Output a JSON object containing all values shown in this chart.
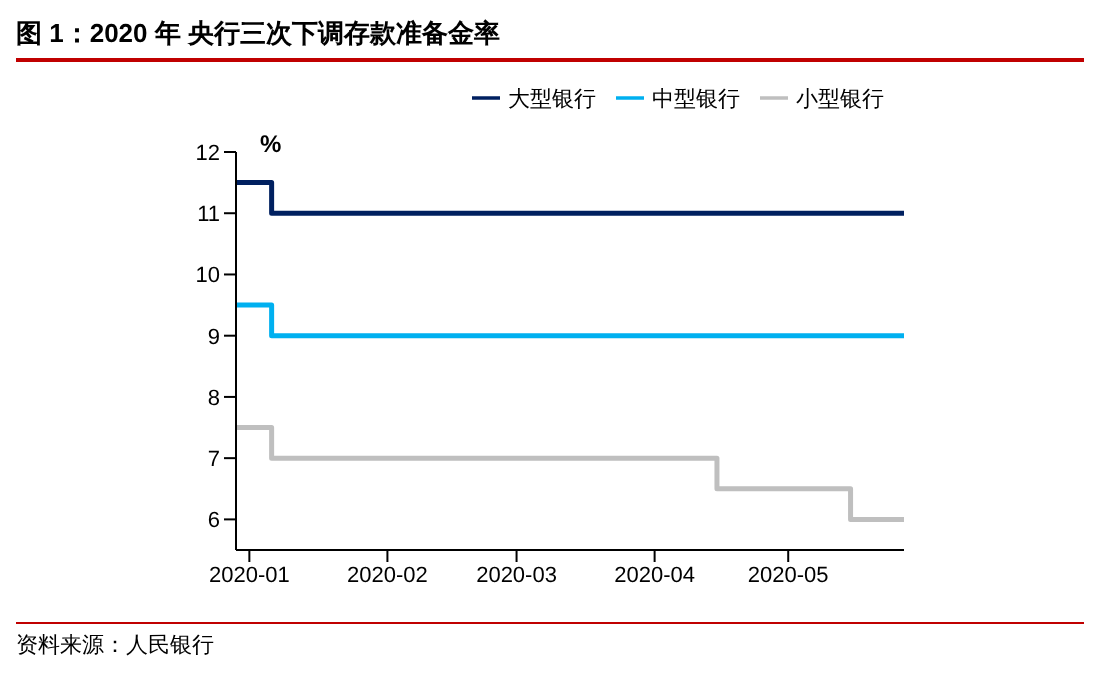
{
  "chart_data": {
    "type": "step",
    "title": "图 1：2020 年  央行三次下调存款准备金率",
    "ylabel": "%",
    "annotations": [
      "资料来源：人民银行"
    ],
    "x": [
      "2019-12-29",
      "2020-01-06",
      "2020-04-15",
      "2020-05-15",
      "2020-05-27"
    ],
    "series": [
      {
        "name": "大型银行",
        "color": "#002060",
        "values": [
          11.5,
          11,
          11,
          11,
          11
        ]
      },
      {
        "name": "中型银行",
        "color": "#00b0f0",
        "values": [
          9.5,
          9,
          9,
          9,
          9
        ]
      },
      {
        "name": "小型银行",
        "color": "#bfbfbf",
        "values": [
          7.5,
          7,
          6.5,
          6,
          6
        ]
      }
    ],
    "xlim": [
      "2019-12-29",
      "2020-05-27"
    ],
    "xticks": [
      "2020-01",
      "2020-02",
      "2020-03",
      "2020-04",
      "2020-05"
    ],
    "ylim": [
      5.5,
      12
    ],
    "yticks": [
      6,
      7,
      8,
      9,
      10,
      11,
      12
    ],
    "legend": "top",
    "marker": "none"
  }
}
